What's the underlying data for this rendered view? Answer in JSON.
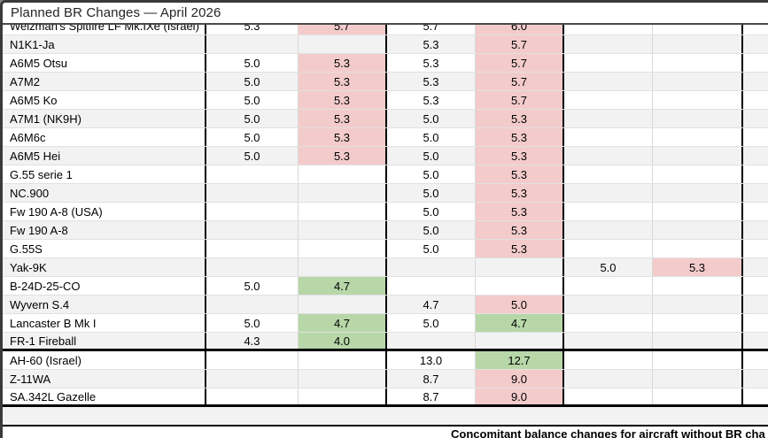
{
  "window": {
    "title": "Planned BR Changes — April 2026"
  },
  "colors": {
    "increase_pink": "#f3cbcb",
    "decrease_green": "#b7d7a8",
    "row_stripe": "#f2f2f2",
    "frame_dark": "#3a3a3a"
  },
  "table": {
    "legend": {
      "up_fill_meaning": "BR increase",
      "down_fill_meaning": "BR decrease"
    },
    "rows": [
      {
        "name": "Weizman's Spitfire LF Mk.IXe (Israel)",
        "clipped": true,
        "cells": [
          {
            "v": "5.3"
          },
          {
            "v": "5.7",
            "f": "up"
          },
          {
            "v": "5.7"
          },
          {
            "v": "6.0",
            "f": "up"
          },
          {
            "v": ""
          },
          {
            "v": ""
          }
        ]
      },
      {
        "name": "N1K1-Ja",
        "cells": [
          {
            "v": ""
          },
          {
            "v": ""
          },
          {
            "v": "5.3"
          },
          {
            "v": "5.7",
            "f": "up"
          },
          {
            "v": ""
          },
          {
            "v": ""
          }
        ]
      },
      {
        "name": "A6M5 Otsu",
        "cells": [
          {
            "v": "5.0"
          },
          {
            "v": "5.3",
            "f": "up"
          },
          {
            "v": "5.3"
          },
          {
            "v": "5.7",
            "f": "up"
          },
          {
            "v": ""
          },
          {
            "v": ""
          }
        ]
      },
      {
        "name": "A7M2",
        "cells": [
          {
            "v": "5.0"
          },
          {
            "v": "5.3",
            "f": "up"
          },
          {
            "v": "5.3"
          },
          {
            "v": "5.7",
            "f": "up"
          },
          {
            "v": ""
          },
          {
            "v": ""
          }
        ]
      },
      {
        "name": "A6M5 Ko",
        "cells": [
          {
            "v": "5.0"
          },
          {
            "v": "5.3",
            "f": "up"
          },
          {
            "v": "5.3"
          },
          {
            "v": "5.7",
            "f": "up"
          },
          {
            "v": ""
          },
          {
            "v": ""
          }
        ]
      },
      {
        "name": "A7M1 (NK9H)",
        "cells": [
          {
            "v": "5.0"
          },
          {
            "v": "5.3",
            "f": "up"
          },
          {
            "v": "5.0"
          },
          {
            "v": "5.3",
            "f": "up"
          },
          {
            "v": ""
          },
          {
            "v": ""
          }
        ]
      },
      {
        "name": "A6M6c",
        "cells": [
          {
            "v": "5.0"
          },
          {
            "v": "5.3",
            "f": "up"
          },
          {
            "v": "5.0"
          },
          {
            "v": "5.3",
            "f": "up"
          },
          {
            "v": ""
          },
          {
            "v": ""
          }
        ]
      },
      {
        "name": "A6M5 Hei",
        "cells": [
          {
            "v": "5.0"
          },
          {
            "v": "5.3",
            "f": "up"
          },
          {
            "v": "5.0"
          },
          {
            "v": "5.3",
            "f": "up"
          },
          {
            "v": ""
          },
          {
            "v": ""
          }
        ]
      },
      {
        "name": "G.55 serie 1",
        "cells": [
          {
            "v": ""
          },
          {
            "v": ""
          },
          {
            "v": "5.0"
          },
          {
            "v": "5.3",
            "f": "up"
          },
          {
            "v": ""
          },
          {
            "v": ""
          }
        ]
      },
      {
        "name": "NC.900",
        "cells": [
          {
            "v": ""
          },
          {
            "v": ""
          },
          {
            "v": "5.0"
          },
          {
            "v": "5.3",
            "f": "up"
          },
          {
            "v": ""
          },
          {
            "v": ""
          }
        ]
      },
      {
        "name": "Fw 190 A-8 (USA)",
        "cells": [
          {
            "v": ""
          },
          {
            "v": ""
          },
          {
            "v": "5.0"
          },
          {
            "v": "5.3",
            "f": "up"
          },
          {
            "v": ""
          },
          {
            "v": ""
          }
        ]
      },
      {
        "name": "Fw 190 A-8",
        "cells": [
          {
            "v": ""
          },
          {
            "v": ""
          },
          {
            "v": "5.0"
          },
          {
            "v": "5.3",
            "f": "up"
          },
          {
            "v": ""
          },
          {
            "v": ""
          }
        ]
      },
      {
        "name": "G.55S",
        "cells": [
          {
            "v": ""
          },
          {
            "v": ""
          },
          {
            "v": "5.0"
          },
          {
            "v": "5.3",
            "f": "up"
          },
          {
            "v": ""
          },
          {
            "v": ""
          }
        ]
      },
      {
        "name": "Yak-9K",
        "cells": [
          {
            "v": ""
          },
          {
            "v": ""
          },
          {
            "v": ""
          },
          {
            "v": ""
          },
          {
            "v": "5.0"
          },
          {
            "v": "5.3",
            "f": "up"
          }
        ]
      },
      {
        "name": "B-24D-25-CO",
        "cells": [
          {
            "v": "5.0"
          },
          {
            "v": "4.7",
            "f": "down"
          },
          {
            "v": ""
          },
          {
            "v": ""
          },
          {
            "v": ""
          },
          {
            "v": ""
          }
        ]
      },
      {
        "name": "Wyvern S.4",
        "cells": [
          {
            "v": ""
          },
          {
            "v": ""
          },
          {
            "v": "4.7"
          },
          {
            "v": "5.0",
            "f": "up"
          },
          {
            "v": ""
          },
          {
            "v": ""
          }
        ]
      },
      {
        "name": "Lancaster B Mk I",
        "cells": [
          {
            "v": "5.0"
          },
          {
            "v": "4.7",
            "f": "down"
          },
          {
            "v": "5.0"
          },
          {
            "v": "4.7",
            "f": "down"
          },
          {
            "v": ""
          },
          {
            "v": ""
          }
        ]
      },
      {
        "name": "FR-1 Fireball",
        "groupEnd": true,
        "cells": [
          {
            "v": "4.3"
          },
          {
            "v": "4.0",
            "f": "down"
          },
          {
            "v": ""
          },
          {
            "v": ""
          },
          {
            "v": ""
          },
          {
            "v": ""
          }
        ]
      },
      {
        "name": "AH-60 (Israel)",
        "cells": [
          {
            "v": ""
          },
          {
            "v": ""
          },
          {
            "v": "13.0"
          },
          {
            "v": "12.7",
            "f": "down"
          },
          {
            "v": ""
          },
          {
            "v": ""
          }
        ]
      },
      {
        "name": "Z-11WA",
        "cells": [
          {
            "v": ""
          },
          {
            "v": ""
          },
          {
            "v": "8.7"
          },
          {
            "v": "9.0",
            "f": "up"
          },
          {
            "v": ""
          },
          {
            "v": ""
          }
        ]
      },
      {
        "name": "SA.342L Gazelle",
        "groupEnd": true,
        "cells": [
          {
            "v": ""
          },
          {
            "v": ""
          },
          {
            "v": "8.7"
          },
          {
            "v": "9.0",
            "f": "up"
          },
          {
            "v": ""
          },
          {
            "v": ""
          }
        ]
      }
    ]
  },
  "footer": {
    "note": "Concomitant balance changes for aircraft without BR cha"
  }
}
